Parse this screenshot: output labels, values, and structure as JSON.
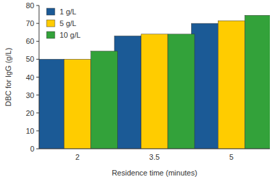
{
  "chart_data": {
    "type": "bar",
    "x_label": "Residence time (minutes)",
    "y_label": "DBC for IgG (g/L)",
    "categories": [
      "2",
      "3.5",
      "5"
    ],
    "series": [
      {
        "name": "1 g/L",
        "color": "#1b5a96",
        "values": [
          50,
          63,
          70
        ]
      },
      {
        "name": "5 g/L",
        "color": "#ffcc00",
        "values": [
          50,
          64,
          71.5
        ]
      },
      {
        "name": "10 g/L",
        "color": "#33a23a",
        "values": [
          54.5,
          64,
          74.5
        ]
      }
    ],
    "ylim": [
      0,
      80
    ],
    "yticks": [
      0,
      10,
      20,
      30,
      40,
      50,
      60,
      70,
      80
    ],
    "grid": false,
    "legend": "upper left"
  }
}
